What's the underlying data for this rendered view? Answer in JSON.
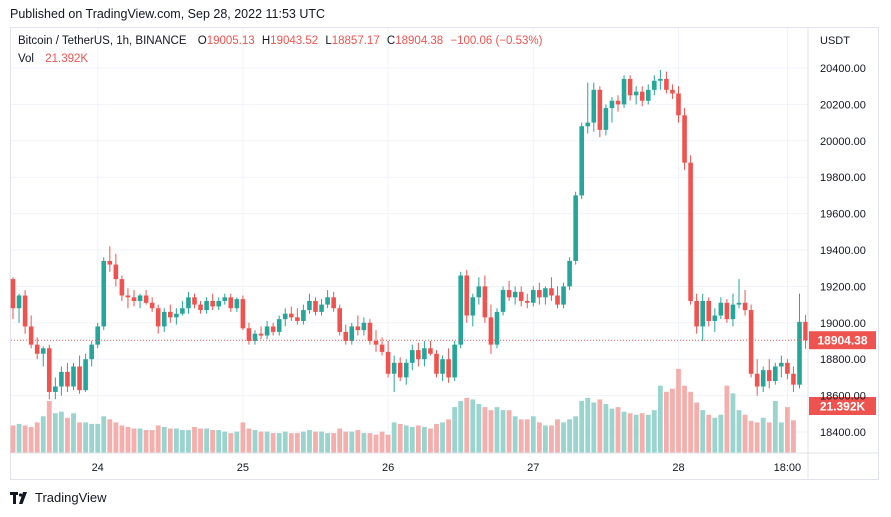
{
  "header": {
    "published": "Published on TradingView.com, Sep 28, 2022 11:53 UTC"
  },
  "legend": {
    "symbol": "Bitcoin / TetherUS, 1h, BINANCE",
    "o_label": "O",
    "o_value": "19005.13",
    "h_label": "H",
    "h_value": "19043.52",
    "l_label": "L",
    "l_value": "18857.17",
    "c_label": "C",
    "c_value": "18904.38",
    "change": "−100.06 (−0.53%)",
    "vol_label": "Vol",
    "vol_value": "21.392K"
  },
  "footer": {
    "brand": "TradingView"
  },
  "colors": {
    "up": "#26a69a",
    "down": "#ef5350",
    "up_volume": "#9ad4cf",
    "down_volume": "#f4aeac",
    "grid": "#f0f3fa"
  },
  "chart_data": {
    "type": "candlestick",
    "symbol": "Bitcoin / TetherUS",
    "timeframe": "1h",
    "exchange": "BINANCE",
    "currency_label": "USDT",
    "y_ticks": [
      "20400.00",
      "20200.00",
      "20000.00",
      "19800.00",
      "19600.00",
      "19400.00",
      "19200.00",
      "19000.00",
      "18800.00",
      "18600.00",
      "18400.00"
    ],
    "ylim": [
      18280,
      20480
    ],
    "x_ticks": [
      {
        "label": "24",
        "index": 14
      },
      {
        "label": "25",
        "index": 38
      },
      {
        "label": "26",
        "index": 62
      },
      {
        "label": "27",
        "index": 86
      },
      {
        "label": "28",
        "index": 110
      },
      {
        "label": "18:00",
        "index": 128
      }
    ],
    "last_price": "18904.38",
    "last_volume": "21.392K",
    "candles": [
      [
        19240,
        19250,
        19020,
        19080
      ],
      [
        19080,
        19160,
        19000,
        19150
      ],
      [
        19150,
        19180,
        18940,
        18980
      ],
      [
        18980,
        19040,
        18860,
        18880
      ],
      [
        18880,
        18920,
        18800,
        18830
      ],
      [
        18830,
        18870,
        18760,
        18860
      ],
      [
        18860,
        18880,
        18580,
        18620
      ],
      [
        18620,
        18700,
        18580,
        18650
      ],
      [
        18650,
        18760,
        18600,
        18730
      ],
      [
        18730,
        18780,
        18620,
        18650
      ],
      [
        18650,
        18780,
        18630,
        18760
      ],
      [
        18760,
        18820,
        18610,
        18630
      ],
      [
        18630,
        18830,
        18620,
        18800
      ],
      [
        18800,
        18900,
        18760,
        18880
      ],
      [
        18880,
        19000,
        18860,
        18980
      ],
      [
        18980,
        19360,
        18960,
        19340
      ],
      [
        19340,
        19420,
        19280,
        19320
      ],
      [
        19320,
        19380,
        19200,
        19240
      ],
      [
        19240,
        19260,
        19120,
        19150
      ],
      [
        19150,
        19190,
        19080,
        19140
      ],
      [
        19140,
        19180,
        19090,
        19120
      ],
      [
        19120,
        19160,
        19080,
        19150
      ],
      [
        19150,
        19180,
        19100,
        19110
      ],
      [
        19110,
        19140,
        19060,
        19080
      ],
      [
        19080,
        19100,
        18940,
        18980
      ],
      [
        18980,
        19080,
        18950,
        19060
      ],
      [
        19060,
        19100,
        19000,
        19030
      ],
      [
        19030,
        19080,
        18990,
        19050
      ],
      [
        19050,
        19120,
        19040,
        19080
      ],
      [
        19080,
        19170,
        19050,
        19140
      ],
      [
        19140,
        19160,
        19080,
        19100
      ],
      [
        19100,
        19120,
        19050,
        19070
      ],
      [
        19070,
        19140,
        19050,
        19120
      ],
      [
        19120,
        19160,
        19070,
        19090
      ],
      [
        19090,
        19140,
        19070,
        19120
      ],
      [
        19120,
        19160,
        19100,
        19140
      ],
      [
        19140,
        19160,
        19060,
        19080
      ],
      [
        19080,
        19140,
        19060,
        19130
      ],
      [
        19130,
        19150,
        18960,
        18970
      ],
      [
        18970,
        19000,
        18880,
        18900
      ],
      [
        18900,
        18960,
        18880,
        18940
      ],
      [
        18940,
        18980,
        18910,
        18930
      ],
      [
        18930,
        19010,
        18910,
        18980
      ],
      [
        18980,
        19000,
        18930,
        18950
      ],
      [
        18950,
        19040,
        18930,
        19020
      ],
      [
        19020,
        19080,
        18980,
        19050
      ],
      [
        19050,
        19090,
        19010,
        19030
      ],
      [
        19030,
        19080,
        18990,
        19010
      ],
      [
        19010,
        19100,
        18990,
        19070
      ],
      [
        19070,
        19160,
        19050,
        19120
      ],
      [
        19120,
        19140,
        19040,
        19060
      ],
      [
        19060,
        19130,
        19040,
        19100
      ],
      [
        19100,
        19180,
        19080,
        19140
      ],
      [
        19140,
        19170,
        19060,
        19080
      ],
      [
        19080,
        19100,
        18930,
        18950
      ],
      [
        18950,
        18990,
        18880,
        18900
      ],
      [
        18900,
        19000,
        18880,
        18980
      ],
      [
        18980,
        19040,
        18930,
        18960
      ],
      [
        18960,
        19030,
        18930,
        19000
      ],
      [
        19000,
        19020,
        18880,
        18900
      ],
      [
        18900,
        18960,
        18840,
        18880
      ],
      [
        18880,
        18920,
        18820,
        18840
      ],
      [
        18840,
        18900,
        18700,
        18720
      ],
      [
        18720,
        18820,
        18620,
        18780
      ],
      [
        18780,
        18810,
        18680,
        18700
      ],
      [
        18700,
        18800,
        18660,
        18780
      ],
      [
        18780,
        18880,
        18740,
        18850
      ],
      [
        18850,
        18890,
        18760,
        18800
      ],
      [
        18800,
        18900,
        18760,
        18860
      ],
      [
        18860,
        18900,
        18820,
        18830
      ],
      [
        18830,
        18850,
        18700,
        18720
      ],
      [
        18720,
        18820,
        18680,
        18800
      ],
      [
        18800,
        18860,
        18670,
        18700
      ],
      [
        18700,
        18900,
        18680,
        18880
      ],
      [
        18880,
        19280,
        18860,
        19260
      ],
      [
        19260,
        19290,
        19000,
        19040
      ],
      [
        19040,
        19160,
        18980,
        19140
      ],
      [
        19140,
        19250,
        19100,
        19200
      ],
      [
        19200,
        19260,
        19000,
        19030
      ],
      [
        19030,
        19100,
        18830,
        18880
      ],
      [
        18880,
        19080,
        18860,
        19060
      ],
      [
        19060,
        19200,
        19040,
        19180
      ],
      [
        19180,
        19230,
        19120,
        19140
      ],
      [
        19140,
        19200,
        19100,
        19170
      ],
      [
        19170,
        19200,
        19090,
        19120
      ],
      [
        19120,
        19160,
        19080,
        19110
      ],
      [
        19110,
        19200,
        19090,
        19180
      ],
      [
        19180,
        19220,
        19100,
        19140
      ],
      [
        19140,
        19200,
        19100,
        19190
      ],
      [
        19190,
        19250,
        19120,
        19150
      ],
      [
        19150,
        19200,
        19080,
        19100
      ],
      [
        19100,
        19220,
        19080,
        19200
      ],
      [
        19200,
        19360,
        19180,
        19340
      ],
      [
        19340,
        19720,
        19320,
        19700
      ],
      [
        19700,
        20100,
        19680,
        20080
      ],
      [
        20080,
        20320,
        20040,
        20100
      ],
      [
        20100,
        20320,
        20050,
        20280
      ],
      [
        20280,
        20300,
        20020,
        20060
      ],
      [
        20060,
        20200,
        20030,
        20180
      ],
      [
        20180,
        20240,
        20100,
        20220
      ],
      [
        20220,
        20250,
        20160,
        20200
      ],
      [
        20200,
        20360,
        20180,
        20340
      ],
      [
        20340,
        20360,
        20220,
        20250
      ],
      [
        20250,
        20300,
        20200,
        20270
      ],
      [
        20270,
        20300,
        20190,
        20220
      ],
      [
        20220,
        20310,
        20200,
        20280
      ],
      [
        20280,
        20360,
        20250,
        20330
      ],
      [
        20330,
        20390,
        20280,
        20340
      ],
      [
        20340,
        20380,
        20260,
        20280
      ],
      [
        20280,
        20310,
        20230,
        20260
      ],
      [
        20260,
        20300,
        20100,
        20140
      ],
      [
        20140,
        20180,
        19840,
        19880
      ],
      [
        19880,
        19920,
        19100,
        19120
      ],
      [
        19120,
        19160,
        18940,
        18980
      ],
      [
        18980,
        19160,
        18900,
        19120
      ],
      [
        19120,
        19140,
        18980,
        19010
      ],
      [
        19010,
        19080,
        18950,
        19040
      ],
      [
        19040,
        19140,
        19020,
        19110
      ],
      [
        19110,
        19130,
        19000,
        19020
      ],
      [
        19020,
        19160,
        18980,
        19100
      ],
      [
        19100,
        19240,
        19080,
        19110
      ],
      [
        19110,
        19180,
        19040,
        19070
      ],
      [
        19070,
        19100,
        18700,
        18720
      ],
      [
        18720,
        18800,
        18600,
        18650
      ],
      [
        18650,
        18760,
        18620,
        18740
      ],
      [
        18740,
        18800,
        18640,
        18680
      ],
      [
        18680,
        18780,
        18660,
        18760
      ],
      [
        18760,
        18820,
        18700,
        18780
      ],
      [
        18780,
        18800,
        18690,
        18720
      ],
      [
        18720,
        18760,
        18620,
        18660
      ],
      [
        18660,
        19160,
        18640,
        19005
      ],
      [
        19005,
        19043.52,
        18857.17,
        18904.38
      ]
    ],
    "volumes": [
      18,
      19,
      18,
      17,
      20,
      24,
      34,
      26,
      27,
      23,
      26,
      20,
      20,
      19,
      19,
      24,
      22,
      20,
      18,
      17,
      16,
      16,
      15,
      15,
      18,
      17,
      16,
      16,
      15,
      15,
      17,
      16,
      16,
      15,
      15,
      14,
      13,
      14,
      20,
      16,
      15,
      14,
      14,
      13,
      13,
      14,
      13,
      13,
      14,
      15,
      14,
      14,
      13,
      13,
      16,
      14,
      14,
      15,
      13,
      13,
      12,
      14,
      12,
      20,
      19,
      18,
      17,
      18,
      17,
      16,
      19,
      20,
      22,
      30,
      34,
      36,
      35,
      32,
      30,
      28,
      30,
      28,
      28,
      24,
      22,
      22,
      24,
      20,
      18,
      18,
      22,
      20,
      22,
      24,
      34,
      36,
      33,
      35,
      32,
      29,
      30,
      27,
      26,
      25,
      26,
      25,
      28,
      44,
      40,
      42,
      55,
      44,
      40,
      33,
      28,
      25,
      23,
      25,
      44,
      39,
      28,
      25,
      21,
      20,
      23,
      20,
      34,
      20,
      30,
      21.392
    ]
  }
}
